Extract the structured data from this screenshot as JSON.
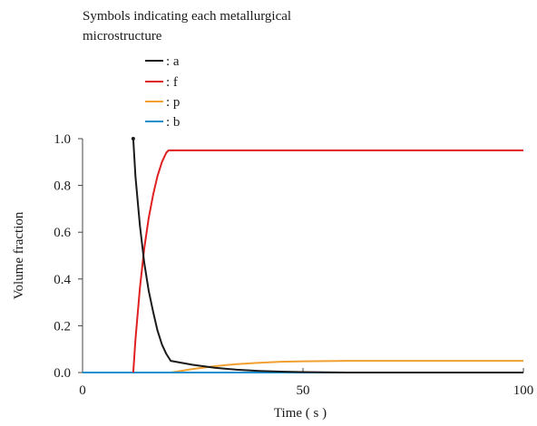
{
  "chart_data": {
    "type": "line",
    "legend": {
      "title_lines": [
        "Symbols indicating each metallurgical",
        "microstructure"
      ],
      "placement": "top-left"
    },
    "xlabel": "Time ( s )",
    "ylabel": "Volume fraction",
    "xlim": [
      0,
      100
    ],
    "ylim": [
      0,
      1.0
    ],
    "x_ticks": [
      0,
      50,
      100
    ],
    "x_tick_labels": [
      "0",
      "50",
      "100"
    ],
    "y_ticks": [
      0.0,
      0.2,
      0.4,
      0.6,
      0.8,
      1.0
    ],
    "y_tick_labels": [
      "0.0",
      "0.2",
      "0.4",
      "0.6",
      "0.8",
      "1.0"
    ],
    "grid": false,
    "series": [
      {
        "name": ": a",
        "color": "#1a1a1a",
        "x": [
          11.5,
          12,
          13,
          14,
          15,
          16,
          17,
          18,
          19,
          20,
          22,
          25,
          30,
          35,
          40,
          45,
          50,
          55,
          60,
          65,
          70,
          80,
          90,
          100
        ],
        "y": [
          1.0,
          0.84,
          0.63,
          0.47,
          0.35,
          0.26,
          0.18,
          0.12,
          0.08,
          0.05,
          0.043,
          0.033,
          0.02,
          0.012,
          0.007,
          0.004,
          0.002,
          0.001,
          0.0,
          0.0,
          0.0,
          0.0,
          0.0,
          0.0
        ]
      },
      {
        "name": ": f",
        "color": "#e02020",
        "x": [
          11.5,
          12,
          13,
          14,
          15,
          16,
          17,
          18,
          19,
          19.5,
          20,
          25,
          30,
          40,
          50,
          60,
          70,
          80,
          90,
          100
        ],
        "y": [
          0.0,
          0.14,
          0.36,
          0.53,
          0.66,
          0.76,
          0.84,
          0.9,
          0.94,
          0.95,
          0.95,
          0.95,
          0.95,
          0.95,
          0.95,
          0.95,
          0.95,
          0.95,
          0.95,
          0.95
        ]
      },
      {
        "name": ": p",
        "color": "#f0a030",
        "x": [
          0,
          20,
          22,
          25,
          28,
          30,
          35,
          40,
          45,
          50,
          55,
          60,
          70,
          80,
          90,
          100
        ],
        "y": [
          0.0,
          0.0,
          0.006,
          0.015,
          0.022,
          0.027,
          0.036,
          0.042,
          0.046,
          0.048,
          0.049,
          0.05,
          0.05,
          0.05,
          0.05,
          0.05
        ]
      },
      {
        "name": ": b",
        "color": "#1a8fd0",
        "x": [
          0,
          100
        ],
        "y": [
          0.0,
          0.0
        ]
      }
    ]
  }
}
